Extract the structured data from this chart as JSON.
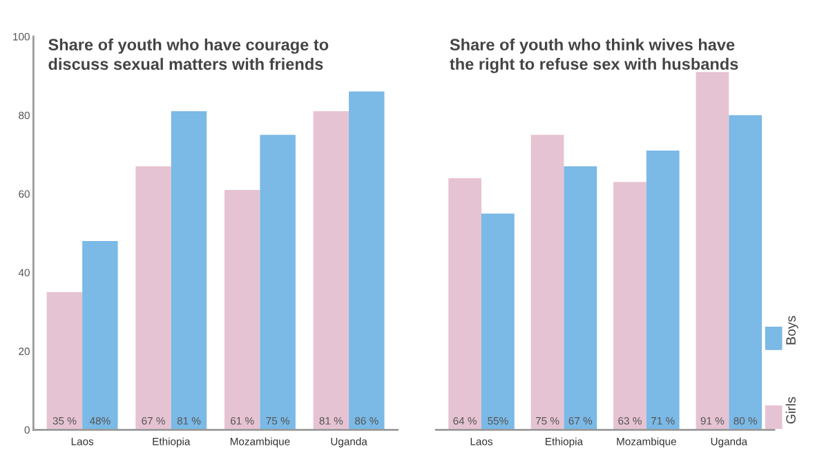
{
  "chart_data": [
    {
      "type": "bar",
      "title": "Share of youth who have courage to\ndiscuss sexual matters with friends",
      "categories": [
        "Laos",
        "Ethiopia",
        "Mozambique",
        "Uganda"
      ],
      "ylim": [
        0,
        100
      ],
      "yticks": [
        0,
        20,
        40,
        60,
        80,
        100
      ],
      "series": [
        {
          "color": "#e6c3d2",
          "values": [
            35,
            67,
            61,
            81
          ],
          "value_labels": [
            "35 %",
            "67 %",
            "61 %",
            "81 %"
          ]
        },
        {
          "color": "#7bb9e6",
          "values": [
            48,
            81,
            75,
            86
          ],
          "value_labels": [
            "48%",
            "81 %",
            "75 %",
            "86 %"
          ]
        }
      ]
    },
    {
      "type": "bar",
      "title": "Share of youth who think wives have\nthe right to refuse sex with husbands",
      "categories": [
        "Laos",
        "Ethiopia",
        "Mozambique",
        "Uganda"
      ],
      "ylim": [
        0,
        100
      ],
      "yticks": [
        0,
        20,
        40,
        60,
        80,
        100
      ],
      "tick_labels": "x",
      "legend": "right",
      "series": [
        {
          "name": "Girls",
          "color": "#e6c3d2",
          "values": [
            64,
            75,
            63,
            91
          ],
          "value_labels": [
            "64 %",
            "75 %",
            "63 %",
            "91 %"
          ]
        },
        {
          "name": "Boys",
          "color": "#7bb9e6",
          "values": [
            55,
            67,
            71,
            80
          ],
          "value_labels": [
            "55%",
            "67 %",
            "71 %",
            "80 %"
          ]
        }
      ]
    }
  ]
}
